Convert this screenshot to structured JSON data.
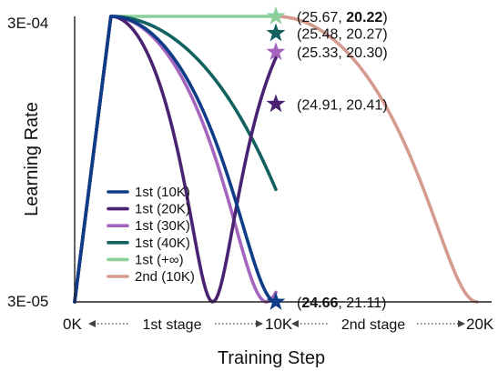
{
  "chart_data": {
    "type": "line",
    "xlabel": "Training Step",
    "ylabel": "Learning Rate",
    "x_ticks": [
      "0K",
      "10K",
      "20K"
    ],
    "y_ticks": [
      "3E-04",
      "3E-05"
    ],
    "stage_labels": [
      "1st stage",
      "2nd stage"
    ],
    "xlim": [
      0,
      20000
    ],
    "ylim": [
      3e-05,
      0.0003
    ],
    "y_scale": "log",
    "legend_position": "lower-left",
    "series": [
      {
        "name": "1st (10K)",
        "color": "#0f3c86"
      },
      {
        "name": "1st (20K)",
        "color": "#4a2272"
      },
      {
        "name": "1st (30K)",
        "color": "#a565bf"
      },
      {
        "name": "1st (40K)",
        "color": "#10615f"
      },
      {
        "name": "1st (+∞)",
        "color": "#8bd09b"
      },
      {
        "name": "2nd (10K)",
        "color": "#d49b8e"
      }
    ],
    "annotations": [
      {
        "series": "1st (+∞)",
        "x": 10000,
        "y": 0.0003,
        "color": "#8bd09b",
        "open": "(",
        "v1": "25.67",
        "sep": ", ",
        "v2": "20.22",
        "close": ")",
        "bold": "v2"
      },
      {
        "series": "1st (40K)",
        "x": 10000,
        "y": 0.000262,
        "color": "#10615f",
        "open": "(",
        "v1": "25.48",
        "sep": ", ",
        "v2": "20.27",
        "close": ")",
        "bold": ""
      },
      {
        "series": "1st (30K)",
        "x": 10000,
        "y": 0.000225,
        "color": "#a565bf",
        "open": "(",
        "v1": "25.33",
        "sep": ", ",
        "v2": "20.30",
        "close": ")",
        "bold": ""
      },
      {
        "series": "1st (20K)",
        "x": 10000,
        "y": 0.000148,
        "color": "#4a2272",
        "open": "(",
        "v1": "24.91",
        "sep": ", ",
        "v2": "20.41",
        "close": ")",
        "bold": ""
      },
      {
        "series": "1st (10K)",
        "x": 10000,
        "y": 3e-05,
        "color": "#0f3c86",
        "open": "(",
        "v1": "24.66",
        "sep": ", ",
        "v2": "21.11",
        "close": ")",
        "bold": "v1"
      }
    ]
  }
}
